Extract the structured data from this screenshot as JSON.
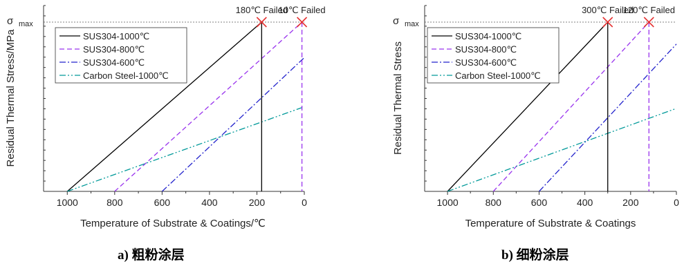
{
  "chart_data": [
    {
      "type": "line",
      "caption": "a) 粗粉涂层",
      "xlabel": "Temperature of Substrate & Coatings/℃",
      "ylabel": "Residual Thermal Stress/MPa",
      "ymax_label": "σ",
      "ymax_sub": "max",
      "xlim": [
        1100,
        0
      ],
      "ylim": [
        0,
        1
      ],
      "xticks": [
        1000,
        800,
        600,
        400,
        200,
        0
      ],
      "x_reversed": true,
      "grid": false,
      "legend": "top-left",
      "series": [
        {
          "name": "SUS304-1000℃",
          "color": "#000000",
          "dash": "solid",
          "x": [
            1000,
            180
          ],
          "y": [
            0,
            1
          ]
        },
        {
          "name": "SUS304-800℃",
          "color": "#9933ee",
          "dash": "dash",
          "x": [
            800,
            10
          ],
          "y": [
            0,
            1
          ]
        },
        {
          "name": "SUS304-600℃",
          "color": "#2222cc",
          "dash": "dashdot",
          "x": [
            600,
            0
          ],
          "y": [
            0,
            0.79
          ]
        },
        {
          "name": "Carbon Steel-1000℃",
          "color": "#009999",
          "dash": "dashdotdot",
          "x": [
            1000,
            0
          ],
          "y": [
            0,
            0.5
          ]
        }
      ],
      "failures": [
        {
          "label": "180℃ Failed",
          "x": 180,
          "y": 1,
          "color": "#000000",
          "dash": "solid"
        },
        {
          "label": "10℃ Failed",
          "x": 10,
          "y": 1,
          "color": "#9933ee",
          "dash": "dash"
        }
      ]
    },
    {
      "type": "line",
      "caption": "b) 细粉涂层",
      "xlabel": "Temperature of Substrate & Coatings",
      "ylabel": "Residual Thermal Stress",
      "ymax_label": "σ",
      "ymax_sub": "max",
      "xlim": [
        1100,
        0
      ],
      "ylim": [
        0,
        1
      ],
      "xticks": [
        1000,
        800,
        600,
        400,
        200,
        0
      ],
      "x_reversed": true,
      "grid": false,
      "legend": "top-left",
      "series": [
        {
          "name": "SUS304-1000℃",
          "color": "#000000",
          "dash": "solid",
          "x": [
            1000,
            300
          ],
          "y": [
            0,
            1
          ]
        },
        {
          "name": "SUS304-800℃",
          "color": "#9933ee",
          "dash": "dash",
          "x": [
            800,
            120
          ],
          "y": [
            0,
            1
          ]
        },
        {
          "name": "SUS304-600℃",
          "color": "#2222cc",
          "dash": "dashdot",
          "x": [
            600,
            0
          ],
          "y": [
            0,
            0.87
          ]
        },
        {
          "name": "Carbon Steel-1000℃",
          "color": "#009999",
          "dash": "dashdotdot",
          "x": [
            1000,
            0
          ],
          "y": [
            0,
            0.49
          ]
        }
      ],
      "failures": [
        {
          "label": "300℃ Failed",
          "x": 300,
          "y": 1,
          "color": "#000000",
          "dash": "solid"
        },
        {
          "label": "120℃ Failed",
          "x": 120,
          "y": 1,
          "color": "#9933ee",
          "dash": "dash"
        }
      ]
    }
  ]
}
